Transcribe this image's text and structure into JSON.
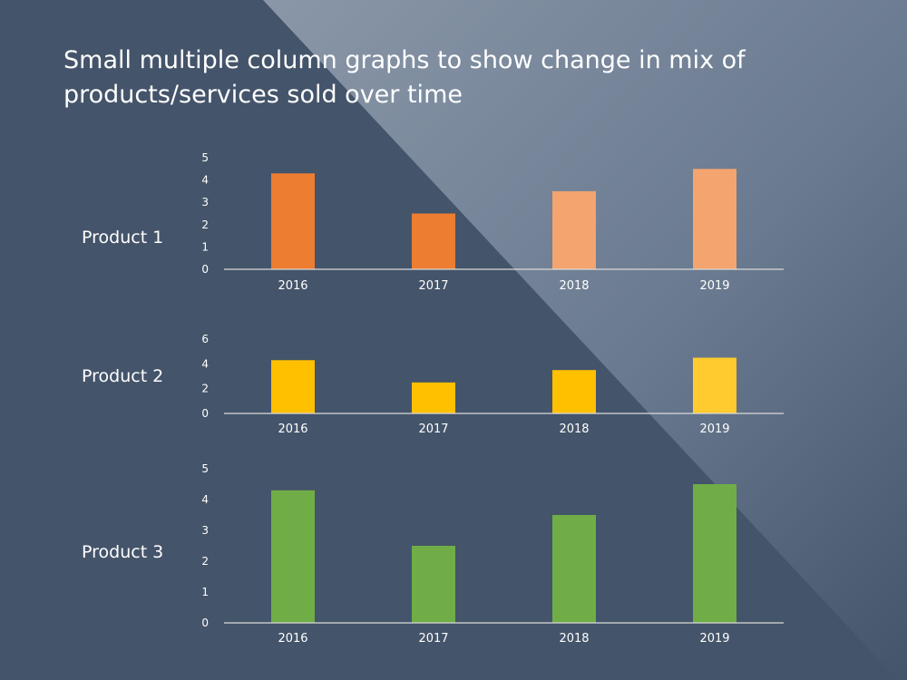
{
  "slide": {
    "title": "Small multiple column graphs to show change in mix of products/services sold over time",
    "background_color": "#44546a",
    "overlay_color": "#8a97a8"
  },
  "chart_data": [
    {
      "type": "bar",
      "label": "Product 1",
      "categories": [
        "2016",
        "2017",
        "2018",
        "2019"
      ],
      "values": [
        4.3,
        2.5,
        3.5,
        4.5
      ],
      "ylim": [
        0,
        5
      ],
      "yticks": [
        0,
        1,
        2,
        3,
        4,
        5
      ],
      "colors": [
        "#ed7d31",
        "#ed7d31",
        "#f4a46e",
        "#f4a46e"
      ],
      "grid": false
    },
    {
      "type": "bar",
      "label": "Product 2",
      "categories": [
        "2016",
        "2017",
        "2018",
        "2019"
      ],
      "values": [
        4.3,
        2.5,
        3.5,
        4.5
      ],
      "ylim": [
        0,
        6
      ],
      "yticks": [
        0,
        2,
        4,
        6
      ],
      "colors": [
        "#ffc000",
        "#ffc000",
        "#ffc000",
        "#ffcb2e"
      ],
      "grid": false
    },
    {
      "type": "bar",
      "label": "Product 3",
      "categories": [
        "2016",
        "2017",
        "2018",
        "2019"
      ],
      "values": [
        4.3,
        2.5,
        3.5,
        4.5
      ],
      "ylim": [
        0,
        5
      ],
      "yticks": [
        0,
        1,
        2,
        3,
        4,
        5
      ],
      "colors": [
        "#70ad47",
        "#70ad47",
        "#70ad47",
        "#70ad47"
      ],
      "grid": false
    }
  ]
}
